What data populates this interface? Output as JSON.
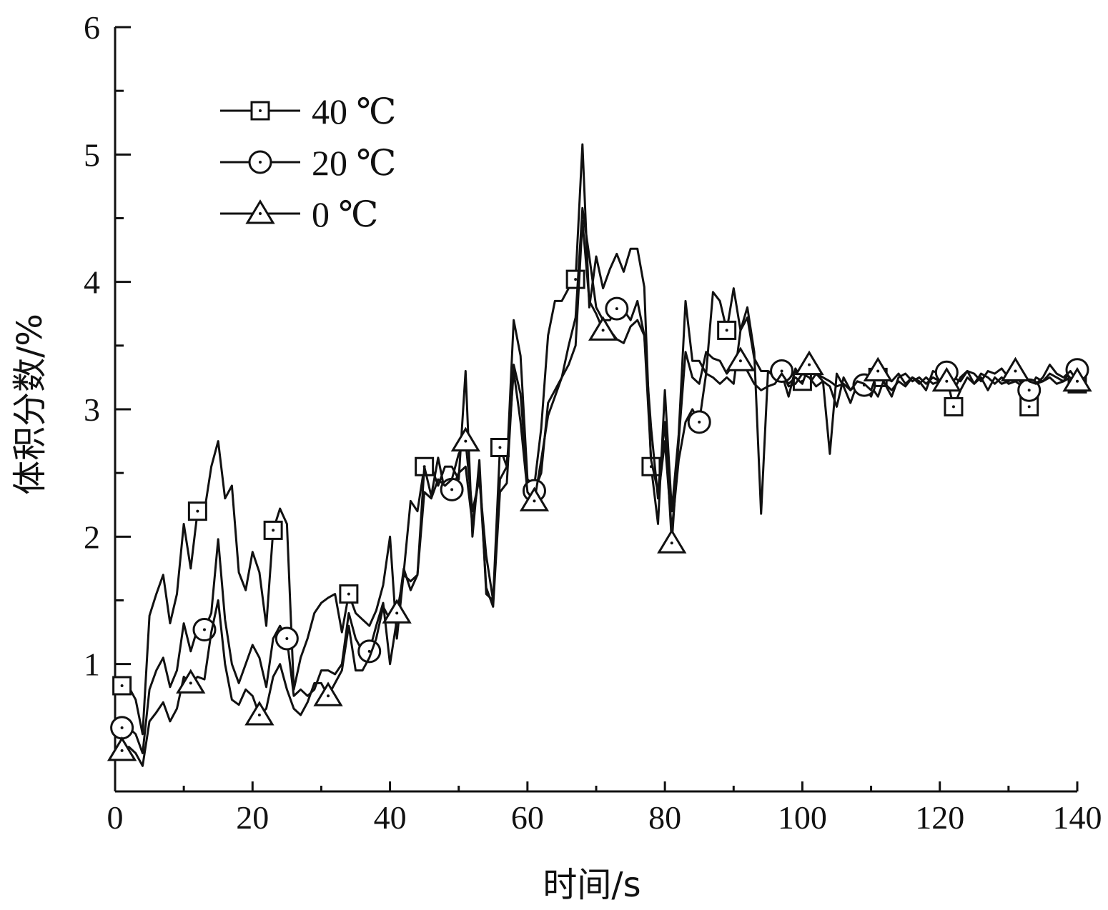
{
  "chart_data": {
    "type": "line",
    "xlabel": "时间/s",
    "ylabel": "体积分数/%",
    "xlim": [
      0,
      140
    ],
    "ylim": [
      0,
      6
    ],
    "xticks": [
      "0",
      "20",
      "40",
      "60",
      "80",
      "100",
      "120",
      "140"
    ],
    "yticks": [
      "1",
      "2",
      "3",
      "4",
      "5",
      "6"
    ],
    "grid": false,
    "legend_position": "top-left",
    "series": [
      {
        "name": "40 ℃",
        "marker": "square",
        "x": [
          1,
          2,
          3,
          4,
          5,
          6,
          7,
          8,
          9,
          10,
          11,
          12,
          13,
          14,
          15,
          16,
          17,
          18,
          19,
          20,
          21,
          22,
          23,
          24,
          25,
          26,
          27,
          28,
          29,
          30,
          31,
          32,
          33,
          34,
          35,
          36,
          37,
          38,
          39,
          40,
          41,
          42,
          43,
          44,
          45,
          46,
          47,
          48,
          49,
          50,
          51,
          52,
          53,
          54,
          55,
          56,
          57,
          58,
          59,
          60,
          61,
          62,
          63,
          64,
          65,
          66,
          67,
          68,
          69,
          70,
          71,
          72,
          73,
          74,
          75,
          76,
          77,
          78,
          79,
          80,
          81,
          82,
          83,
          84,
          85,
          86,
          87,
          88,
          89,
          90,
          91,
          92,
          93,
          94,
          95,
          96,
          97,
          98,
          99,
          100,
          101,
          102,
          103,
          104,
          105,
          106,
          107,
          108,
          109,
          110,
          111,
          112,
          113,
          114,
          115,
          116,
          117,
          118,
          119,
          120,
          121,
          122,
          123,
          124,
          125,
          126,
          127,
          128,
          129,
          130,
          131,
          132,
          133,
          134,
          135,
          136,
          137,
          138,
          139,
          140
        ],
        "y": [
          0.83,
          0.82,
          0.72,
          0.45,
          1.38,
          1.55,
          1.7,
          1.32,
          1.55,
          2.1,
          1.75,
          2.2,
          2.2,
          2.55,
          2.75,
          2.3,
          2.4,
          1.72,
          1.58,
          1.88,
          1.72,
          1.3,
          2.05,
          2.22,
          2.1,
          0.8,
          1.05,
          1.2,
          1.4,
          1.48,
          1.52,
          1.55,
          1.25,
          1.55,
          1.4,
          1.35,
          1.3,
          1.42,
          1.62,
          2.0,
          1.2,
          1.72,
          2.28,
          2.2,
          2.55,
          2.55,
          2.4,
          2.55,
          2.55,
          2.45,
          3.3,
          2.0,
          2.6,
          1.55,
          1.5,
          2.7,
          2.55,
          3.7,
          3.42,
          2.45,
          2.4,
          2.85,
          3.58,
          3.85,
          3.85,
          3.95,
          4.02,
          5.08,
          3.8,
          4.2,
          3.95,
          4.1,
          4.22,
          4.08,
          4.26,
          4.26,
          3.96,
          2.55,
          2.1,
          3.15,
          2.2,
          2.8,
          3.85,
          3.38,
          3.38,
          3.28,
          3.92,
          3.85,
          3.62,
          3.95,
          3.62,
          3.8,
          3.45,
          2.18,
          3.3,
          3.25,
          3.28,
          3.1,
          3.32,
          3.22,
          3.2,
          3.28,
          3.22,
          2.65,
          3.28,
          3.18,
          3.05,
          3.2,
          3.18,
          3.1,
          3.25,
          3.2,
          3.15,
          3.22,
          3.18,
          3.25,
          3.2,
          3.25,
          3.2,
          3.22,
          3.25,
          3.02,
          3.15,
          3.25,
          3.2,
          3.25,
          3.15,
          3.25,
          3.2,
          3.22,
          3.25,
          3.2,
          3.02,
          3.2,
          3.22,
          3.25,
          3.2,
          3.22,
          3.25,
          3.2
        ]
      },
      {
        "name": "20 ℃",
        "marker": "circle",
        "x": [
          1,
          2,
          3,
          4,
          5,
          6,
          7,
          8,
          9,
          10,
          11,
          12,
          13,
          14,
          15,
          16,
          17,
          18,
          19,
          20,
          21,
          22,
          23,
          24,
          25,
          26,
          27,
          28,
          29,
          30,
          31,
          32,
          33,
          34,
          35,
          36,
          37,
          38,
          39,
          40,
          41,
          42,
          43,
          44,
          45,
          46,
          47,
          48,
          49,
          50,
          51,
          52,
          53,
          54,
          55,
          56,
          57,
          58,
          59,
          60,
          61,
          62,
          63,
          64,
          65,
          66,
          67,
          68,
          69,
          70,
          71,
          72,
          73,
          74,
          75,
          76,
          77,
          78,
          79,
          80,
          81,
          82,
          83,
          84,
          85,
          86,
          87,
          88,
          89,
          90,
          91,
          92,
          93,
          94,
          95,
          96,
          97,
          98,
          99,
          100,
          101,
          102,
          103,
          104,
          105,
          106,
          107,
          108,
          109,
          110,
          111,
          112,
          113,
          114,
          115,
          116,
          117,
          118,
          119,
          120,
          121,
          122,
          123,
          124,
          125,
          126,
          127,
          128,
          129,
          130,
          131,
          132,
          133,
          134,
          135,
          136,
          137,
          138,
          139,
          140
        ],
        "y": [
          0.5,
          0.5,
          0.45,
          0.3,
          0.8,
          0.95,
          1.05,
          0.82,
          0.95,
          1.32,
          1.1,
          1.28,
          1.27,
          1.4,
          1.98,
          1.35,
          1.0,
          0.85,
          1.0,
          1.15,
          1.05,
          0.82,
          1.2,
          1.3,
          1.2,
          0.75,
          0.8,
          0.75,
          0.8,
          0.95,
          0.95,
          0.92,
          1.0,
          1.4,
          1.2,
          1.1,
          1.1,
          1.3,
          1.48,
          1.0,
          1.35,
          1.75,
          1.58,
          1.7,
          2.55,
          2.32,
          2.62,
          2.35,
          2.37,
          2.5,
          2.55,
          2.1,
          2.5,
          1.6,
          1.45,
          2.35,
          2.42,
          3.35,
          3.12,
          2.42,
          2.36,
          2.5,
          3.05,
          3.15,
          3.25,
          3.5,
          3.72,
          4.58,
          4.2,
          3.8,
          3.7,
          3.7,
          3.79,
          3.78,
          3.7,
          3.85,
          3.58,
          2.85,
          2.3,
          2.75,
          2.05,
          2.6,
          2.9,
          3.0,
          2.9,
          3.28,
          3.25,
          3.2,
          3.25,
          3.2,
          3.62,
          3.72,
          3.4,
          3.3,
          3.3,
          3.28,
          3.3,
          3.18,
          3.2,
          3.28,
          3.25,
          3.18,
          3.22,
          3.18,
          3.02,
          3.25,
          3.15,
          3.2,
          3.19,
          3.18,
          3.1,
          3.25,
          3.22,
          3.28,
          3.2,
          3.25,
          3.22,
          3.15,
          3.3,
          3.28,
          3.29,
          3.25,
          3.22,
          3.3,
          3.2,
          3.28,
          3.25,
          3.2,
          3.25,
          3.2,
          3.22,
          3.18,
          3.15,
          3.25,
          3.22,
          3.28,
          3.25,
          3.22,
          3.3,
          3.31
        ]
      },
      {
        "name": "0 ℃",
        "marker": "triangle",
        "x": [
          1,
          2,
          3,
          4,
          5,
          6,
          7,
          8,
          9,
          10,
          11,
          12,
          13,
          14,
          15,
          16,
          17,
          18,
          19,
          20,
          21,
          22,
          23,
          24,
          25,
          26,
          27,
          28,
          29,
          30,
          31,
          32,
          33,
          34,
          35,
          36,
          37,
          38,
          39,
          40,
          41,
          42,
          43,
          44,
          45,
          46,
          47,
          48,
          49,
          50,
          51,
          52,
          53,
          54,
          55,
          56,
          57,
          58,
          59,
          60,
          61,
          62,
          63,
          64,
          65,
          66,
          67,
          68,
          69,
          70,
          71,
          72,
          73,
          74,
          75,
          76,
          77,
          78,
          79,
          80,
          81,
          82,
          83,
          84,
          85,
          86,
          87,
          88,
          89,
          90,
          91,
          92,
          93,
          94,
          95,
          96,
          97,
          98,
          99,
          100,
          101,
          102,
          103,
          104,
          105,
          106,
          107,
          108,
          109,
          110,
          111,
          112,
          113,
          114,
          115,
          116,
          117,
          118,
          119,
          120,
          121,
          122,
          123,
          124,
          125,
          126,
          127,
          128,
          129,
          130,
          131,
          132,
          133,
          134,
          135,
          136,
          137,
          138,
          139,
          140
        ],
        "y": [
          0.32,
          0.35,
          0.3,
          0.2,
          0.55,
          0.62,
          0.7,
          0.55,
          0.65,
          0.9,
          0.85,
          0.9,
          0.88,
          1.25,
          1.5,
          1.0,
          0.72,
          0.68,
          0.8,
          0.75,
          0.6,
          0.65,
          0.9,
          1.0,
          0.8,
          0.65,
          0.6,
          0.7,
          0.85,
          0.85,
          0.75,
          0.85,
          0.95,
          1.3,
          0.95,
          0.95,
          1.05,
          1.2,
          1.45,
          1.35,
          1.4,
          1.7,
          1.65,
          1.7,
          2.35,
          2.3,
          2.45,
          2.4,
          2.45,
          2.65,
          2.75,
          2.2,
          2.45,
          1.85,
          1.5,
          2.45,
          2.55,
          3.3,
          2.9,
          2.35,
          2.28,
          2.6,
          2.95,
          3.1,
          3.25,
          3.35,
          3.5,
          4.48,
          3.85,
          3.75,
          3.62,
          3.62,
          3.55,
          3.52,
          3.65,
          3.7,
          3.58,
          2.6,
          2.35,
          2.9,
          1.95,
          2.75,
          3.45,
          3.25,
          3.2,
          3.45,
          3.4,
          3.38,
          3.28,
          3.35,
          3.38,
          3.3,
          3.2,
          3.15,
          3.18,
          3.2,
          3.28,
          3.2,
          3.25,
          3.2,
          3.35,
          3.28,
          3.25,
          3.22,
          3.18,
          3.2,
          3.15,
          3.22,
          3.2,
          3.15,
          3.3,
          3.2,
          3.1,
          3.25,
          3.28,
          3.22,
          3.25,
          3.2,
          3.25,
          3.22,
          3.22,
          3.15,
          3.25,
          3.3,
          3.28,
          3.22,
          3.3,
          3.28,
          3.32,
          3.25,
          3.3,
          3.28,
          3.22,
          3.2,
          3.25,
          3.35,
          3.28,
          3.25,
          3.3,
          3.22
        ]
      }
    ]
  }
}
